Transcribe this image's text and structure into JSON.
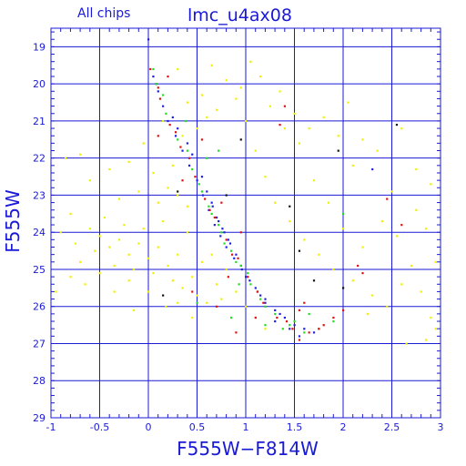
{
  "chart_data": {
    "type": "scatter",
    "title": "lmc_u4ax08",
    "subtitle": "All chips",
    "xlabel": "F555W−F814W",
    "ylabel": "F555W",
    "xlim": [
      -1,
      3
    ],
    "ylim": [
      29,
      18.5
    ],
    "y_inverted": true,
    "grid": true,
    "x_ticks": [
      -1,
      -0.5,
      0,
      0.5,
      1,
      1.5,
      2,
      2.5,
      3
    ],
    "x_tick_labels": [
      "-1",
      "-0.5",
      "0",
      "0.5",
      "1",
      "1.5",
      "2",
      "2.5",
      "3"
    ],
    "y_ticks": [
      19,
      20,
      21,
      22,
      23,
      24,
      25,
      26,
      27,
      28,
      29
    ],
    "y_tick_labels": [
      "19",
      "20",
      "21",
      "22",
      "23",
      "24",
      "25",
      "26",
      "27",
      "28",
      "29"
    ],
    "colors": {
      "axis": "#1a1ad6",
      "grid": "#1a1ad6"
    },
    "series": [
      {
        "color": "#1f1fe6",
        "points": [
          [
            0.05,
            19.8
          ],
          [
            0.1,
            20.2
          ],
          [
            0.15,
            20.6
          ],
          [
            0.2,
            21.0
          ],
          [
            0.28,
            21.4
          ],
          [
            0.35,
            21.8
          ],
          [
            0.42,
            22.2
          ],
          [
            0.5,
            22.6
          ],
          [
            0.56,
            23.0
          ],
          [
            0.62,
            23.4
          ],
          [
            0.68,
            23.8
          ],
          [
            0.74,
            24.1
          ],
          [
            0.8,
            24.4
          ],
          [
            0.88,
            24.7
          ],
          [
            0.96,
            25.0
          ],
          [
            1.04,
            25.3
          ],
          [
            1.12,
            25.6
          ],
          [
            1.2,
            25.9
          ],
          [
            1.3,
            26.1
          ],
          [
            1.4,
            26.3
          ],
          [
            1.5,
            26.5
          ],
          [
            1.6,
            26.6
          ],
          [
            0.6,
            22.9
          ],
          [
            0.66,
            23.3
          ],
          [
            0.72,
            23.7
          ],
          [
            0.78,
            24.0
          ],
          [
            0.84,
            24.3
          ],
          [
            0.9,
            24.6
          ],
          [
            1.0,
            25.2
          ],
          [
            1.1,
            25.5
          ],
          [
            1.2,
            25.8
          ],
          [
            1.35,
            26.2
          ],
          [
            0.45,
            21.9
          ],
          [
            0.4,
            21.6
          ],
          [
            0.3,
            21.2
          ],
          [
            0.7,
            23.6
          ],
          [
            0.76,
            23.9
          ],
          [
            0.82,
            24.2
          ],
          [
            1.3,
            26.4
          ],
          [
            1.45,
            26.6
          ],
          [
            1.55,
            26.8
          ],
          [
            1.7,
            26.7
          ],
          [
            1.15,
            25.7
          ],
          [
            0.95,
            24.9
          ],
          [
            0.65,
            23.2
          ],
          [
            0.55,
            22.5
          ],
          [
            0.25,
            20.9
          ],
          [
            0.08,
            20.0
          ],
          [
            2.3,
            22.3
          ],
          [
            0.0,
            18.8
          ]
        ]
      },
      {
        "color": "#22dd22",
        "points": [
          [
            0.08,
            20.0
          ],
          [
            0.18,
            20.8
          ],
          [
            0.3,
            21.5
          ],
          [
            0.45,
            22.3
          ],
          [
            0.55,
            22.9
          ],
          [
            0.65,
            23.5
          ],
          [
            0.75,
            24.0
          ],
          [
            0.85,
            24.5
          ],
          [
            0.95,
            24.9
          ],
          [
            1.05,
            25.4
          ],
          [
            1.15,
            25.8
          ],
          [
            1.3,
            26.2
          ],
          [
            1.45,
            26.5
          ],
          [
            1.6,
            26.7
          ],
          [
            1.75,
            26.6
          ],
          [
            0.4,
            21.8
          ],
          [
            0.52,
            22.7
          ],
          [
            0.62,
            23.3
          ],
          [
            0.72,
            23.8
          ],
          [
            0.9,
            24.8
          ],
          [
            1.2,
            26.0
          ],
          [
            1.5,
            26.4
          ],
          [
            1.65,
            26.2
          ],
          [
            0.6,
            22.0
          ],
          [
            0.72,
            21.8
          ],
          [
            0.38,
            21.0
          ],
          [
            1.02,
            25.1
          ],
          [
            0.15,
            20.3
          ],
          [
            0.78,
            24.3
          ],
          [
            1.38,
            26.6
          ],
          [
            0.5,
            25.9
          ],
          [
            0.85,
            26.3
          ],
          [
            1.9,
            26.4
          ],
          [
            1.2,
            26.5
          ],
          [
            0.93,
            25.4
          ],
          [
            2.0,
            23.5
          ],
          [
            0.05,
            19.6
          ]
        ]
      },
      {
        "color": "#e01010",
        "points": [
          [
            0.02,
            19.6
          ],
          [
            0.12,
            20.4
          ],
          [
            0.22,
            21.1
          ],
          [
            0.33,
            21.7
          ],
          [
            0.48,
            22.5
          ],
          [
            0.58,
            23.1
          ],
          [
            0.68,
            23.6
          ],
          [
            0.8,
            24.2
          ],
          [
            0.92,
            24.7
          ],
          [
            1.02,
            25.2
          ],
          [
            1.18,
            25.9
          ],
          [
            1.32,
            26.3
          ],
          [
            1.48,
            26.6
          ],
          [
            1.65,
            26.7
          ],
          [
            1.8,
            26.5
          ],
          [
            0.28,
            21.3
          ],
          [
            0.42,
            22.0
          ],
          [
            0.63,
            23.4
          ],
          [
            0.86,
            24.6
          ],
          [
            1.12,
            25.6
          ],
          [
            1.42,
            26.4
          ],
          [
            0.1,
            20.1
          ],
          [
            0.75,
            23.2
          ],
          [
            0.45,
            25.6
          ],
          [
            0.7,
            26.0
          ],
          [
            1.9,
            26.3
          ],
          [
            0.82,
            25.2
          ],
          [
            0.2,
            19.8
          ],
          [
            0.55,
            21.5
          ],
          [
            1.1,
            26.3
          ],
          [
            1.55,
            26.1
          ],
          [
            0.35,
            22.6
          ],
          [
            2.2,
            25.1
          ],
          [
            1.6,
            25.9
          ],
          [
            0.95,
            24.0
          ]
        ]
      },
      {
        "color": "#f0f000",
        "points": [
          [
            -0.9,
            24.0
          ],
          [
            -0.8,
            23.5
          ],
          [
            -0.75,
            24.3
          ],
          [
            -0.7,
            24.8
          ],
          [
            -0.6,
            23.9
          ],
          [
            -0.55,
            24.5
          ],
          [
            -0.5,
            24.1
          ],
          [
            -0.45,
            23.6
          ],
          [
            -0.4,
            24.4
          ],
          [
            -0.35,
            24.9
          ],
          [
            -0.3,
            24.2
          ],
          [
            -0.25,
            23.8
          ],
          [
            -0.2,
            24.6
          ],
          [
            -0.15,
            25.0
          ],
          [
            -0.1,
            24.3
          ],
          [
            -0.05,
            23.9
          ],
          [
            0.0,
            24.7
          ],
          [
            0.05,
            25.1
          ],
          [
            0.1,
            24.4
          ],
          [
            0.15,
            23.7
          ],
          [
            0.2,
            24.9
          ],
          [
            0.25,
            25.3
          ],
          [
            0.3,
            24.6
          ],
          [
            0.35,
            25.5
          ],
          [
            0.4,
            24.0
          ],
          [
            0.45,
            25.2
          ],
          [
            0.5,
            25.7
          ],
          [
            0.55,
            24.8
          ],
          [
            0.6,
            25.9
          ],
          [
            0.4,
            23.3
          ],
          [
            0.3,
            23.0
          ],
          [
            0.2,
            22.8
          ],
          [
            0.1,
            23.2
          ],
          [
            -0.1,
            22.9
          ],
          [
            -0.3,
            23.1
          ],
          [
            -0.6,
            22.6
          ],
          [
            -0.85,
            22.0
          ],
          [
            -0.7,
            21.9
          ],
          [
            -0.4,
            22.3
          ],
          [
            -0.2,
            22.1
          ],
          [
            0.05,
            22.4
          ],
          [
            0.25,
            22.2
          ],
          [
            0.35,
            21.4
          ],
          [
            0.5,
            21.2
          ],
          [
            0.6,
            20.9
          ],
          [
            0.15,
            21.0
          ],
          [
            -0.05,
            21.6
          ],
          [
            0.8,
            19.9
          ],
          [
            0.9,
            20.4
          ],
          [
            1.0,
            21.0
          ],
          [
            1.1,
            21.8
          ],
          [
            1.2,
            22.5
          ],
          [
            1.3,
            23.2
          ],
          [
            1.45,
            23.7
          ],
          [
            1.6,
            24.2
          ],
          [
            1.75,
            24.6
          ],
          [
            1.9,
            25.0
          ],
          [
            2.1,
            25.3
          ],
          [
            2.3,
            25.7
          ],
          [
            2.45,
            26.0
          ],
          [
            2.6,
            25.4
          ],
          [
            2.7,
            24.9
          ],
          [
            2.8,
            25.6
          ],
          [
            2.9,
            26.3
          ],
          [
            2.95,
            26.6
          ],
          [
            2.2,
            24.4
          ],
          [
            2.0,
            23.9
          ],
          [
            1.85,
            23.2
          ],
          [
            1.7,
            22.6
          ],
          [
            1.55,
            21.6
          ],
          [
            1.4,
            21.2
          ],
          [
            1.25,
            20.6
          ],
          [
            1.15,
            19.8
          ],
          [
            1.05,
            19.4
          ],
          [
            2.4,
            23.7
          ],
          [
            2.55,
            24.1
          ],
          [
            2.75,
            23.4
          ],
          [
            2.5,
            22.9
          ],
          [
            2.35,
            21.8
          ],
          [
            2.1,
            22.2
          ],
          [
            1.95,
            21.4
          ],
          [
            1.8,
            20.9
          ],
          [
            0.7,
            25.4
          ],
          [
            0.8,
            25.0
          ],
          [
            0.9,
            25.6
          ],
          [
            1.0,
            26.0
          ],
          [
            1.1,
            26.3
          ],
          [
            1.2,
            26.6
          ],
          [
            0.65,
            24.6
          ],
          [
            0.75,
            25.8
          ],
          [
            -0.95,
            25.6
          ],
          [
            -0.8,
            25.2
          ],
          [
            -0.65,
            25.4
          ],
          [
            -0.5,
            25.1
          ],
          [
            -0.35,
            25.6
          ],
          [
            -0.2,
            25.3
          ],
          [
            0.0,
            25.6
          ],
          [
            0.18,
            26.0
          ],
          [
            -0.15,
            26.1
          ],
          [
            0.3,
            25.9
          ],
          [
            0.45,
            26.3
          ],
          [
            2.25,
            26.2
          ],
          [
            2.65,
            27.0
          ],
          [
            2.85,
            26.9
          ],
          [
            0.55,
            20.3
          ],
          [
            0.7,
            20.7
          ],
          [
            0.4,
            20.5
          ],
          [
            0.3,
            19.6
          ],
          [
            0.65,
            19.5
          ],
          [
            0.95,
            20.1
          ],
          [
            1.35,
            20.2
          ],
          [
            1.5,
            20.8
          ],
          [
            1.65,
            21.2
          ],
          [
            2.05,
            20.5
          ],
          [
            2.2,
            21.5
          ],
          [
            2.6,
            21.2
          ],
          [
            2.75,
            22.3
          ],
          [
            2.9,
            22.7
          ],
          [
            2.85,
            23.9
          ],
          [
            2.95,
            24.8
          ]
        ]
      },
      {
        "color": "#e01010",
        "points": [
          [
            0.1,
            21.4
          ],
          [
            0.9,
            26.7
          ],
          [
            1.55,
            26.9
          ],
          [
            1.75,
            26.6
          ],
          [
            2.0,
            26.1
          ],
          [
            2.45,
            23.1
          ],
          [
            1.35,
            21.1
          ],
          [
            1.4,
            20.6
          ],
          [
            2.6,
            23.8
          ],
          [
            2.15,
            24.9
          ]
        ]
      },
      {
        "color": "#111111",
        "points": [
          [
            1.95,
            21.8
          ],
          [
            2.55,
            21.1
          ],
          [
            0.95,
            21.5
          ],
          [
            1.7,
            25.3
          ],
          [
            1.45,
            23.3
          ],
          [
            1.55,
            24.5
          ],
          [
            0.8,
            23.0
          ],
          [
            0.3,
            22.9
          ],
          [
            0.15,
            25.7
          ],
          [
            2.0,
            25.5
          ]
        ]
      }
    ]
  }
}
